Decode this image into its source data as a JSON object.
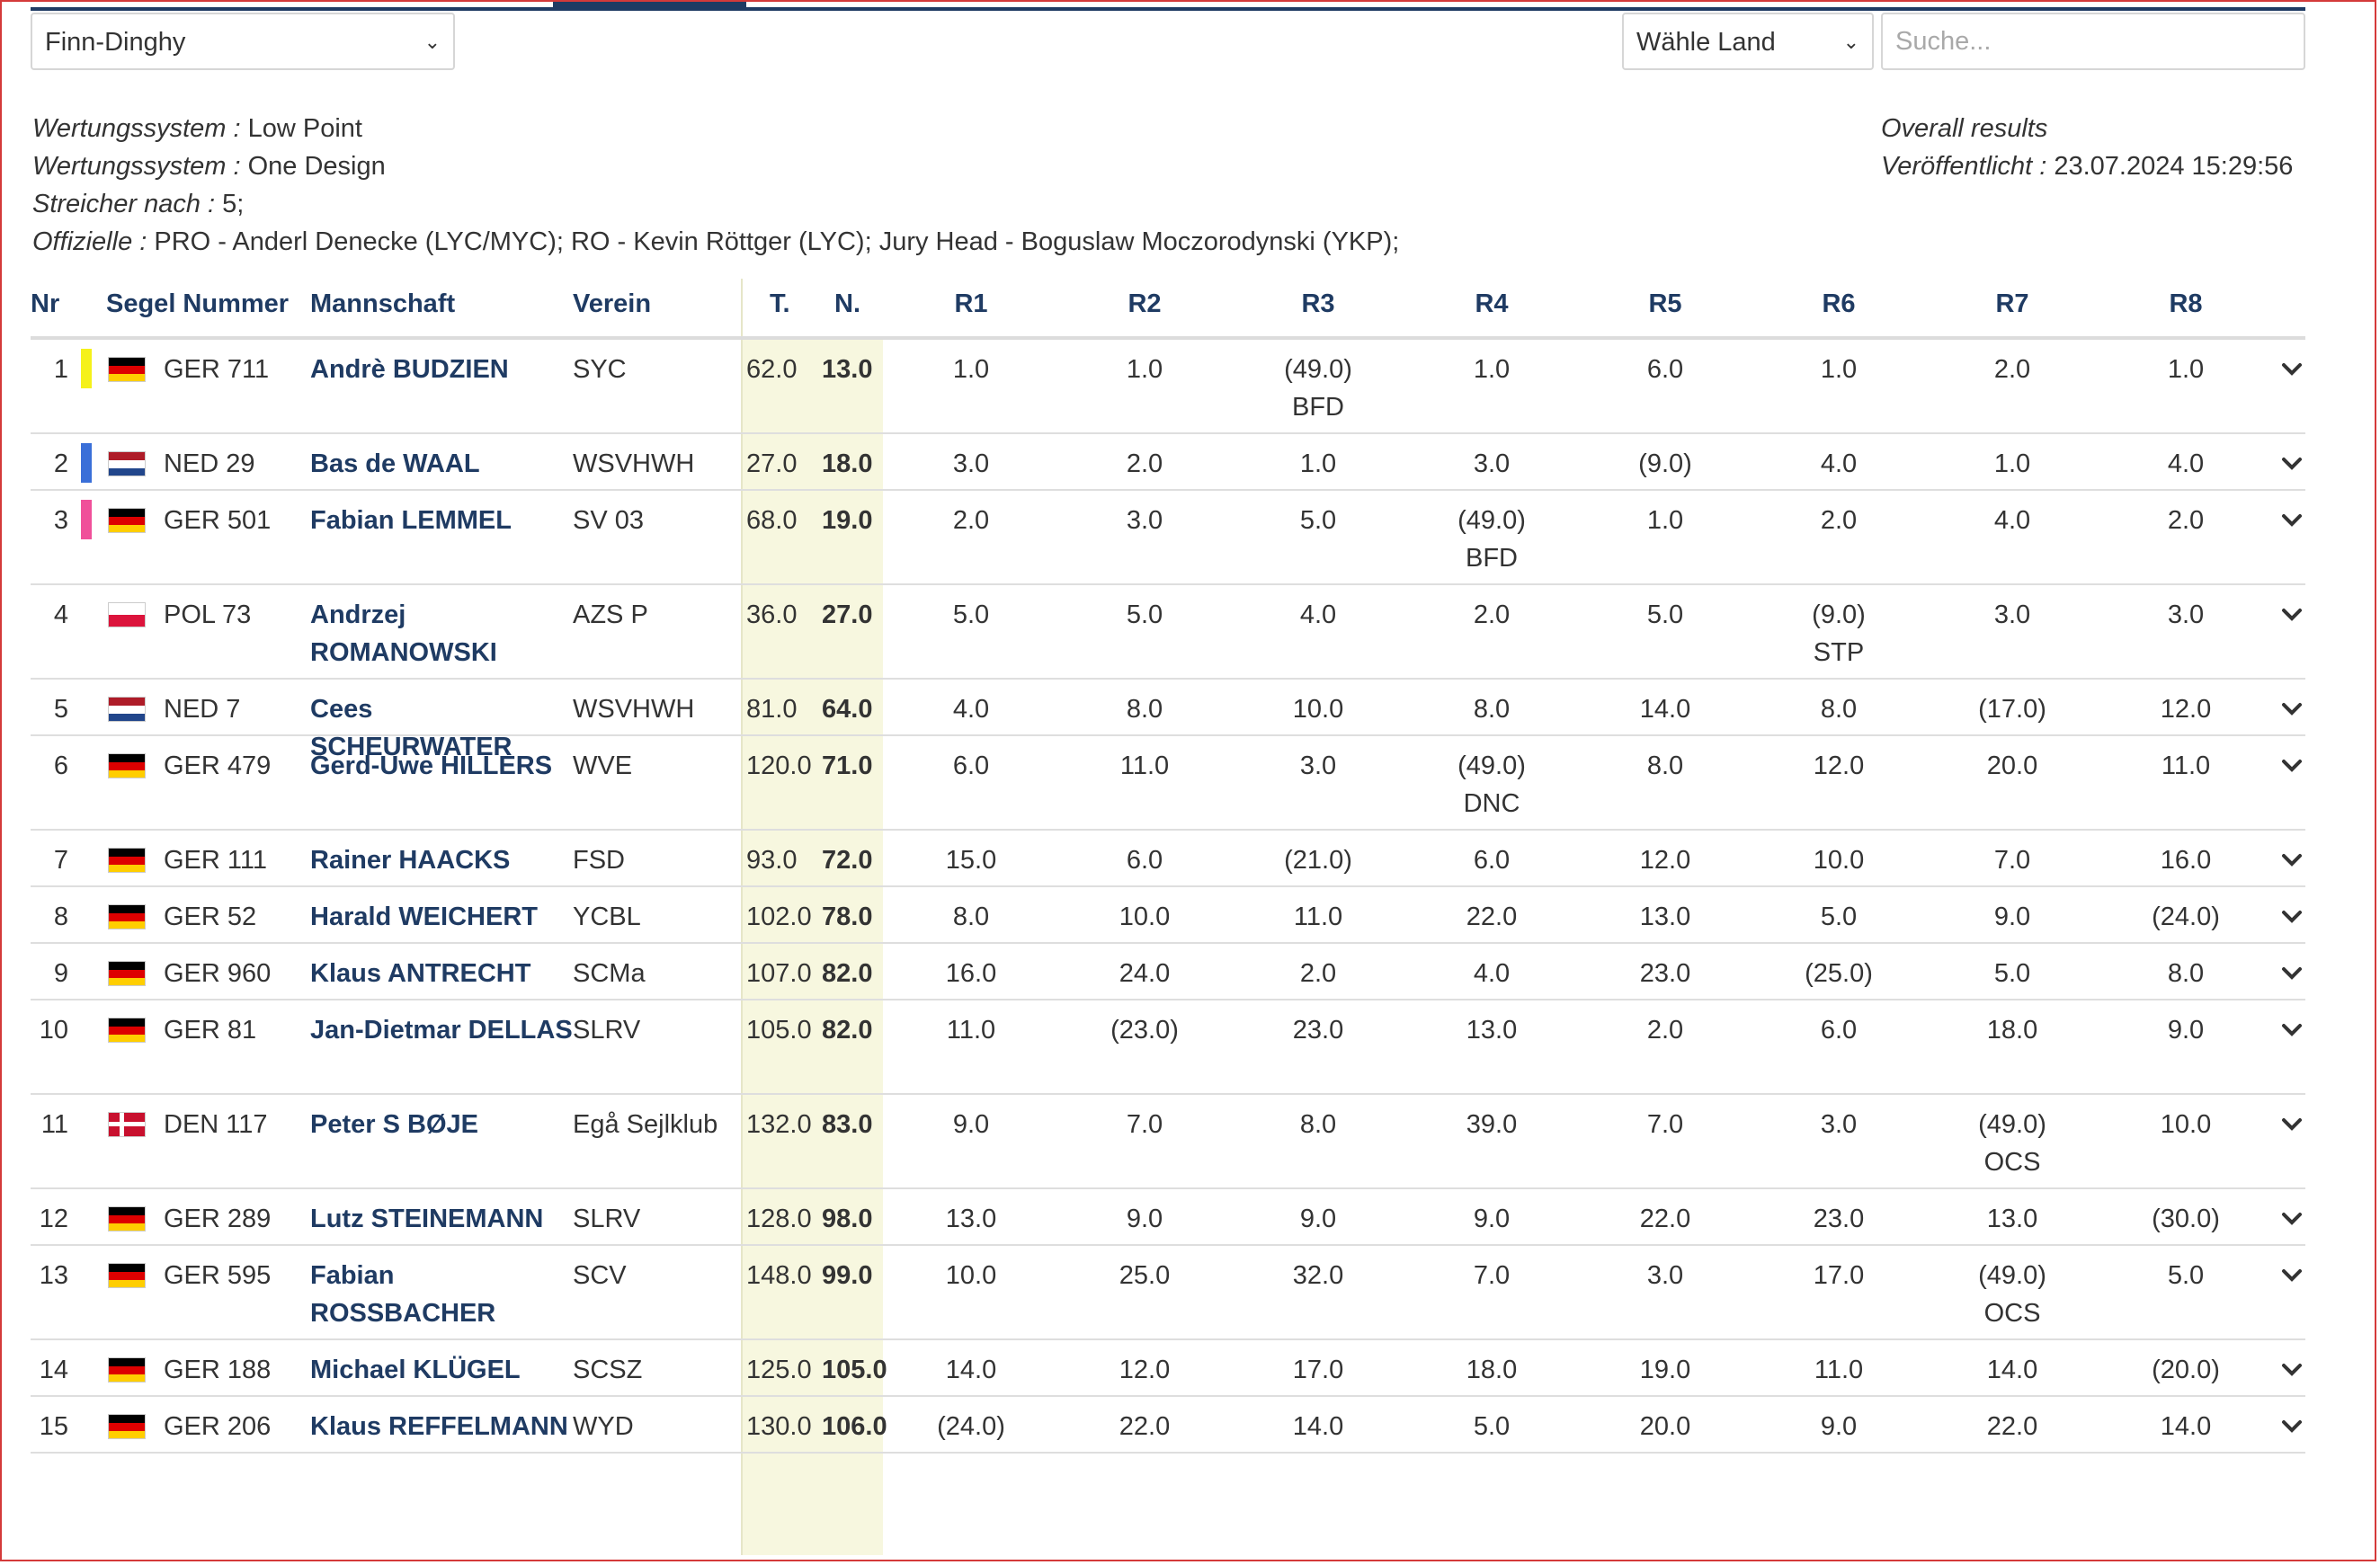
{
  "filters": {
    "class_select": "Finn-Dinghy",
    "country_select": "Wähle Land",
    "search_placeholder": "Suche..."
  },
  "info": {
    "left": [
      {
        "label": "Wertungssystem :",
        "value": " Low Point"
      },
      {
        "label": "Wertungssystem :",
        "value": " One Design"
      },
      {
        "label": "Streicher nach :",
        "value": " 5;"
      },
      {
        "label": "Offizielle :",
        "value": " PRO - Anderl Denecke (LYC/MYC); RO - Kevin Röttger (LYC); Jury Head - Boguslaw Moczorodynski (YKP);"
      }
    ],
    "right": [
      {
        "label": "Overall results",
        "value": ""
      },
      {
        "label": "Veröffentlicht :",
        "value": " 23.07.2024 15:29:56"
      }
    ]
  },
  "columns": [
    "Nr",
    "Segel Nummer",
    "Mannschaft",
    "Verein",
    "T.",
    "N.",
    "R1",
    "R2",
    "R3",
    "R4",
    "R5",
    "R6",
    "R7",
    "R8"
  ],
  "colors": {
    "accent": "#1f3b63",
    "medal_1": "#f5f11a",
    "medal_2": "#3a6fd8",
    "medal_3": "#f0509a",
    "net_shade": "#f7f7df",
    "frame": "#d43a3a"
  },
  "rows": [
    {
      "nr": "1",
      "medal": "medal_1",
      "flag": "GER",
      "sail": "GER 711",
      "crew": "Andrè BUDZIEN",
      "club": "SYC",
      "total": "62.0",
      "net": "13.0",
      "r": [
        "1.0",
        "1.0",
        "(49.0)",
        "1.0",
        "6.0",
        "1.0",
        "2.0",
        "1.0"
      ],
      "codes": [
        "",
        "",
        "BFD",
        "",
        "",
        "",
        "",
        ""
      ]
    },
    {
      "nr": "2",
      "medal": "medal_2",
      "flag": "NED",
      "sail": "NED 29",
      "crew": "Bas de WAAL",
      "club": "WSVHWH",
      "total": "27.0",
      "net": "18.0",
      "r": [
        "3.0",
        "2.0",
        "1.0",
        "3.0",
        "(9.0)",
        "4.0",
        "1.0",
        "4.0"
      ],
      "codes": [
        "",
        "",
        "",
        "",
        "",
        "",
        "",
        ""
      ]
    },
    {
      "nr": "3",
      "medal": "medal_3",
      "flag": "GER",
      "sail": "GER 501",
      "crew": "Fabian LEMMEL",
      "club": "SV 03",
      "total": "68.0",
      "net": "19.0",
      "r": [
        "2.0",
        "3.0",
        "5.0",
        "(49.0)",
        "1.0",
        "2.0",
        "4.0",
        "2.0"
      ],
      "codes": [
        "",
        "",
        "",
        "BFD",
        "",
        "",
        "",
        ""
      ]
    },
    {
      "nr": "4",
      "medal": "",
      "flag": "POL",
      "sail": "POL 73",
      "crew": "Andrzej ROMANOWSKI",
      "club": "AZS P",
      "total": "36.0",
      "net": "27.0",
      "r": [
        "5.0",
        "5.0",
        "4.0",
        "2.0",
        "5.0",
        "(9.0)",
        "3.0",
        "3.0"
      ],
      "codes": [
        "",
        "",
        "",
        "",
        "",
        "STP",
        "",
        ""
      ]
    },
    {
      "nr": "5",
      "medal": "",
      "flag": "NED",
      "sail": "NED 7",
      "crew": "Cees SCHEURWATER",
      "club": "WSVHWH",
      "total": "81.0",
      "net": "64.0",
      "r": [
        "4.0",
        "8.0",
        "10.0",
        "8.0",
        "14.0",
        "8.0",
        "(17.0)",
        "12.0"
      ],
      "codes": [
        "",
        "",
        "",
        "",
        "",
        "",
        "",
        ""
      ]
    },
    {
      "nr": "6",
      "medal": "",
      "flag": "GER",
      "sail": "GER 479",
      "crew": "Gerd-Uwe HILLERS",
      "club": "WVE",
      "total": "120.0",
      "net": "71.0",
      "r": [
        "6.0",
        "11.0",
        "3.0",
        "(49.0)",
        "8.0",
        "12.0",
        "20.0",
        "11.0"
      ],
      "codes": [
        "",
        "",
        "",
        "DNC",
        "",
        "",
        "",
        ""
      ]
    },
    {
      "nr": "7",
      "medal": "",
      "flag": "GER",
      "sail": "GER 111",
      "crew": "Rainer HAACKS",
      "club": "FSD",
      "total": "93.0",
      "net": "72.0",
      "r": [
        "15.0",
        "6.0",
        "(21.0)",
        "6.0",
        "12.0",
        "10.0",
        "7.0",
        "16.0"
      ],
      "codes": [
        "",
        "",
        "",
        "",
        "",
        "",
        "",
        ""
      ]
    },
    {
      "nr": "8",
      "medal": "",
      "flag": "GER",
      "sail": "GER 52",
      "crew": "Harald WEICHERT",
      "club": "YCBL",
      "total": "102.0",
      "net": "78.0",
      "r": [
        "8.0",
        "10.0",
        "11.0",
        "22.0",
        "13.0",
        "5.0",
        "9.0",
        "(24.0)"
      ],
      "codes": [
        "",
        "",
        "",
        "",
        "",
        "",
        "",
        ""
      ]
    },
    {
      "nr": "9",
      "medal": "",
      "flag": "GER",
      "sail": "GER 960",
      "crew": "Klaus ANTRECHT",
      "club": "SCMa",
      "total": "107.0",
      "net": "82.0",
      "r": [
        "16.0",
        "24.0",
        "2.0",
        "4.0",
        "23.0",
        "(25.0)",
        "5.0",
        "8.0"
      ],
      "codes": [
        "",
        "",
        "",
        "",
        "",
        "",
        "",
        ""
      ]
    },
    {
      "nr": "10",
      "medal": "",
      "flag": "GER",
      "sail": "GER 81",
      "crew": "Jan-Dietmar DELLAS",
      "club": "SLRV",
      "total": "105.0",
      "net": "82.0",
      "r": [
        "11.0",
        "(23.0)",
        "23.0",
        "13.0",
        "2.0",
        "6.0",
        "18.0",
        "9.0"
      ],
      "codes": [
        "",
        "",
        "",
        "",
        "",
        "",
        "",
        ""
      ]
    },
    {
      "nr": "11",
      "medal": "",
      "flag": "DEN",
      "sail": "DEN 117",
      "crew": "Peter S BØJE",
      "club": "Egå Sejlklub",
      "total": "132.0",
      "net": "83.0",
      "r": [
        "9.0",
        "7.0",
        "8.0",
        "39.0",
        "7.0",
        "3.0",
        "(49.0)",
        "10.0"
      ],
      "codes": [
        "",
        "",
        "",
        "",
        "",
        "",
        "OCS",
        ""
      ]
    },
    {
      "nr": "12",
      "medal": "",
      "flag": "GER",
      "sail": "GER 289",
      "crew": "Lutz STEINEMANN",
      "club": "SLRV",
      "total": "128.0",
      "net": "98.0",
      "r": [
        "13.0",
        "9.0",
        "9.0",
        "9.0",
        "22.0",
        "23.0",
        "13.0",
        "(30.0)"
      ],
      "codes": [
        "",
        "",
        "",
        "",
        "",
        "",
        "",
        ""
      ]
    },
    {
      "nr": "13",
      "medal": "",
      "flag": "GER",
      "sail": "GER 595",
      "crew": "Fabian ROSSBACHER",
      "club": "SCV",
      "total": "148.0",
      "net": "99.0",
      "r": [
        "10.0",
        "25.0",
        "32.0",
        "7.0",
        "3.0",
        "17.0",
        "(49.0)",
        "5.0"
      ],
      "codes": [
        "",
        "",
        "",
        "",
        "",
        "",
        "OCS",
        ""
      ]
    },
    {
      "nr": "14",
      "medal": "",
      "flag": "GER",
      "sail": "GER 188",
      "crew": "Michael KLÜGEL",
      "club": "SCSZ",
      "total": "125.0",
      "net": "105.0",
      "r": [
        "14.0",
        "12.0",
        "17.0",
        "18.0",
        "19.0",
        "11.0",
        "14.0",
        "(20.0)"
      ],
      "codes": [
        "",
        "",
        "",
        "",
        "",
        "",
        "",
        ""
      ]
    },
    {
      "nr": "15",
      "medal": "",
      "flag": "GER",
      "sail": "GER 206",
      "crew": "Klaus REFFELMANN",
      "club": "WYD",
      "total": "130.0",
      "net": "106.0",
      "r": [
        "(24.0)",
        "22.0",
        "14.0",
        "5.0",
        "20.0",
        "9.0",
        "22.0",
        "14.0"
      ],
      "codes": [
        "",
        "",
        "",
        "",
        "",
        "",
        "",
        ""
      ]
    }
  ]
}
